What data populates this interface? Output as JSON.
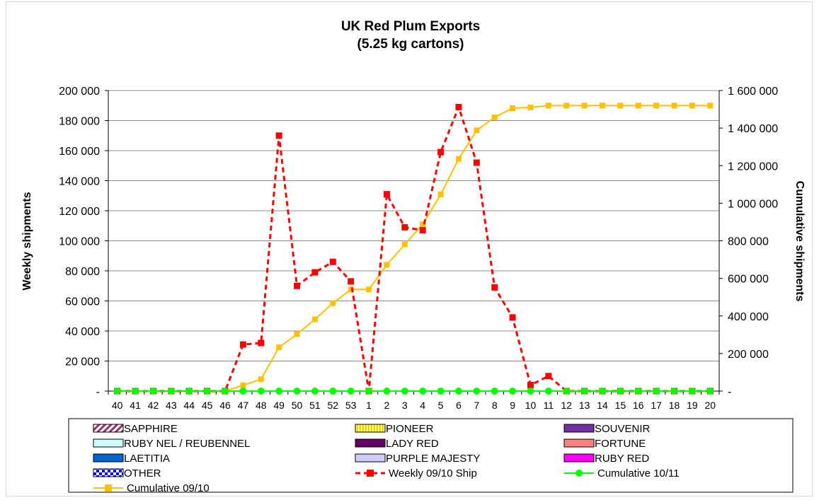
{
  "chart_data": {
    "type": "line",
    "title": "UK Red Plum Exports",
    "subtitle": "(5.25 kg cartons)",
    "ylabel": "Weekly shipments",
    "y2label": "Cumulative shipments",
    "xlabel": "",
    "categories": [
      "40",
      "41",
      "42",
      "43",
      "44",
      "45",
      "46",
      "47",
      "48",
      "49",
      "50",
      "51",
      "52",
      "53",
      "1",
      "2",
      "3",
      "4",
      "5",
      "6",
      "7",
      "8",
      "9",
      "10",
      "11",
      "12",
      "13",
      "14",
      "15",
      "16",
      "17",
      "18",
      "19",
      "20"
    ],
    "ylim": [
      0,
      200000
    ],
    "y2lim": [
      0,
      1600000
    ],
    "y_ticks": [
      {
        "value": 0,
        "label": "-"
      },
      {
        "value": 20000,
        "label": "20 000"
      },
      {
        "value": 40000,
        "label": "40 000"
      },
      {
        "value": 60000,
        "label": "60 000"
      },
      {
        "value": 80000,
        "label": "80 000"
      },
      {
        "value": 100000,
        "label": "100 000"
      },
      {
        "value": 120000,
        "label": "120 000"
      },
      {
        "value": 140000,
        "label": "140 000"
      },
      {
        "value": 160000,
        "label": "160 000"
      },
      {
        "value": 180000,
        "label": "180 000"
      },
      {
        "value": 200000,
        "label": "200 000"
      }
    ],
    "y2_ticks": [
      {
        "value": 0,
        "label": "-"
      },
      {
        "value": 200000,
        "label": "200 000"
      },
      {
        "value": 400000,
        "label": "400 000"
      },
      {
        "value": 600000,
        "label": "600 000"
      },
      {
        "value": 800000,
        "label": "800 000"
      },
      {
        "value": 1000000,
        "label": "1 000 000"
      },
      {
        "value": 1200000,
        "label": "1 200 000"
      },
      {
        "value": 1400000,
        "label": "1 400 000"
      },
      {
        "value": 1600000,
        "label": "1 600 000"
      }
    ],
    "grid": "horizontal",
    "legend_position": "bottom",
    "bar_series": [
      {
        "name": "SAPPHIRE",
        "color": "#993366",
        "pattern": "diagonal-white"
      },
      {
        "name": "PIONEER",
        "color": "#ffff66",
        "pattern": "vertical-lines"
      },
      {
        "name": "SOUVENIR",
        "color": "#7030a0",
        "pattern": "solid"
      },
      {
        "name": "RUBY NEL / REUBENNEL",
        "color": "#ccffff",
        "pattern": "solid"
      },
      {
        "name": "LADY RED",
        "color": "#660066",
        "pattern": "solid"
      },
      {
        "name": "FORTUNE",
        "color": "#ff8080",
        "pattern": "solid"
      },
      {
        "name": "LAETITIA",
        "color": "#0066cc",
        "pattern": "solid"
      },
      {
        "name": "PURPLE MAJESTY",
        "color": "#ccccff",
        "pattern": "solid"
      },
      {
        "name": "RUBY RED",
        "color": "#ff00ff",
        "pattern": "solid"
      },
      {
        "name": "OTHER",
        "color": "#0000ff",
        "pattern": "checker"
      }
    ],
    "series": [
      {
        "name": "Weekly 09/10 Ship",
        "axis": "left",
        "color": "#ff0000",
        "style": "dashed",
        "marker": "square",
        "values": [
          0,
          0,
          0,
          0,
          0,
          0,
          0,
          31000,
          32000,
          170000,
          70000,
          79000,
          86000,
          73000,
          0,
          131000,
          109000,
          107000,
          159000,
          189000,
          152000,
          69000,
          49000,
          4000,
          10000,
          0,
          0,
          0,
          0,
          0,
          0,
          0,
          0,
          0
        ]
      },
      {
        "name": "Cumulative 10/11",
        "axis": "right",
        "color": "#00ff00",
        "style": "solid",
        "marker": "circle",
        "values": [
          0,
          0,
          0,
          0,
          0,
          0,
          0,
          0,
          0,
          0,
          0,
          0,
          0,
          0,
          0,
          0,
          0,
          0,
          0,
          0,
          0,
          0,
          0,
          0,
          0,
          0,
          0,
          0,
          0,
          0,
          0,
          0,
          0,
          0
        ]
      },
      {
        "name": "Cumulative 09/10",
        "axis": "right",
        "color": "#ffc000",
        "style": "solid",
        "marker": "square",
        "values": [
          0,
          0,
          0,
          0,
          0,
          0,
          0,
          31000,
          63000,
          233000,
          303000,
          382000,
          468000,
          541000,
          541000,
          672000,
          781000,
          888000,
          1047000,
          1236000,
          1388000,
          1457000,
          1506000,
          1510000,
          1520000,
          1520000,
          1520000,
          1520000,
          1520000,
          1520000,
          1520000,
          1520000,
          1520000,
          1520000
        ]
      }
    ]
  }
}
